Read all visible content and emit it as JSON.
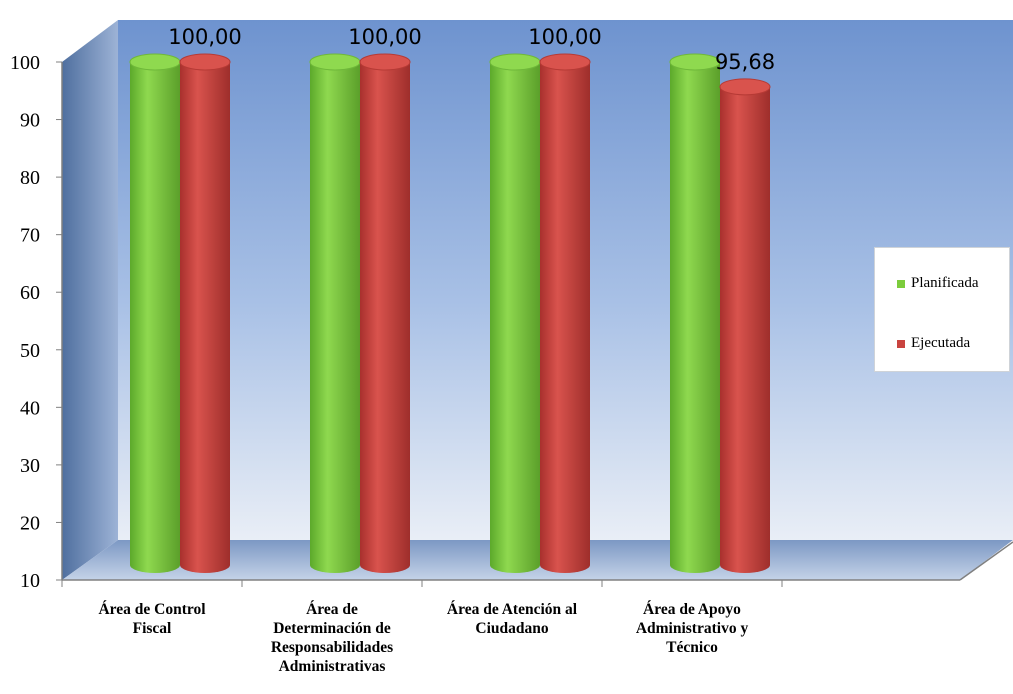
{
  "chart_data": {
    "type": "bar",
    "categories": [
      "Área de Control Fiscal",
      "Área de Determinación de Responsabilidades Administrativas",
      "Área de Atención al Ciudadano",
      "Área de Apoyo Administrativo y Técnico"
    ],
    "category_lines": [
      [
        "Área de Control",
        "Fiscal"
      ],
      [
        "Área de",
        "Determinación de",
        "Responsabilidades",
        "Administrativas"
      ],
      [
        "Área de Atención al",
        "Ciudadano"
      ],
      [
        "Área de Apoyo",
        "Administrativo y",
        "Técnico"
      ]
    ],
    "series": [
      {
        "name": "Planificada",
        "values": [
          100,
          100,
          100,
          100
        ],
        "color": "#7ccc3c"
      },
      {
        "name": "Ejecutada",
        "values": [
          100.0,
          100.0,
          100.0,
          95.68
        ],
        "color": "#c9443f"
      }
    ],
    "data_labels": [
      "100,00",
      "100,00",
      "100,00",
      "95,68"
    ],
    "ylim": [
      10,
      100
    ],
    "yticks": [
      "10",
      "20",
      "30",
      "40",
      "50",
      "60",
      "70",
      "80",
      "90",
      "100"
    ],
    "legend_position": "right",
    "grid": false,
    "title": "",
    "xlabel": "",
    "ylabel": ""
  },
  "legend": {
    "planned_label": "Planificada",
    "executed_label": "Ejecutada",
    "planned_color": "#7ccc3c",
    "executed_color": "#c9443f"
  }
}
